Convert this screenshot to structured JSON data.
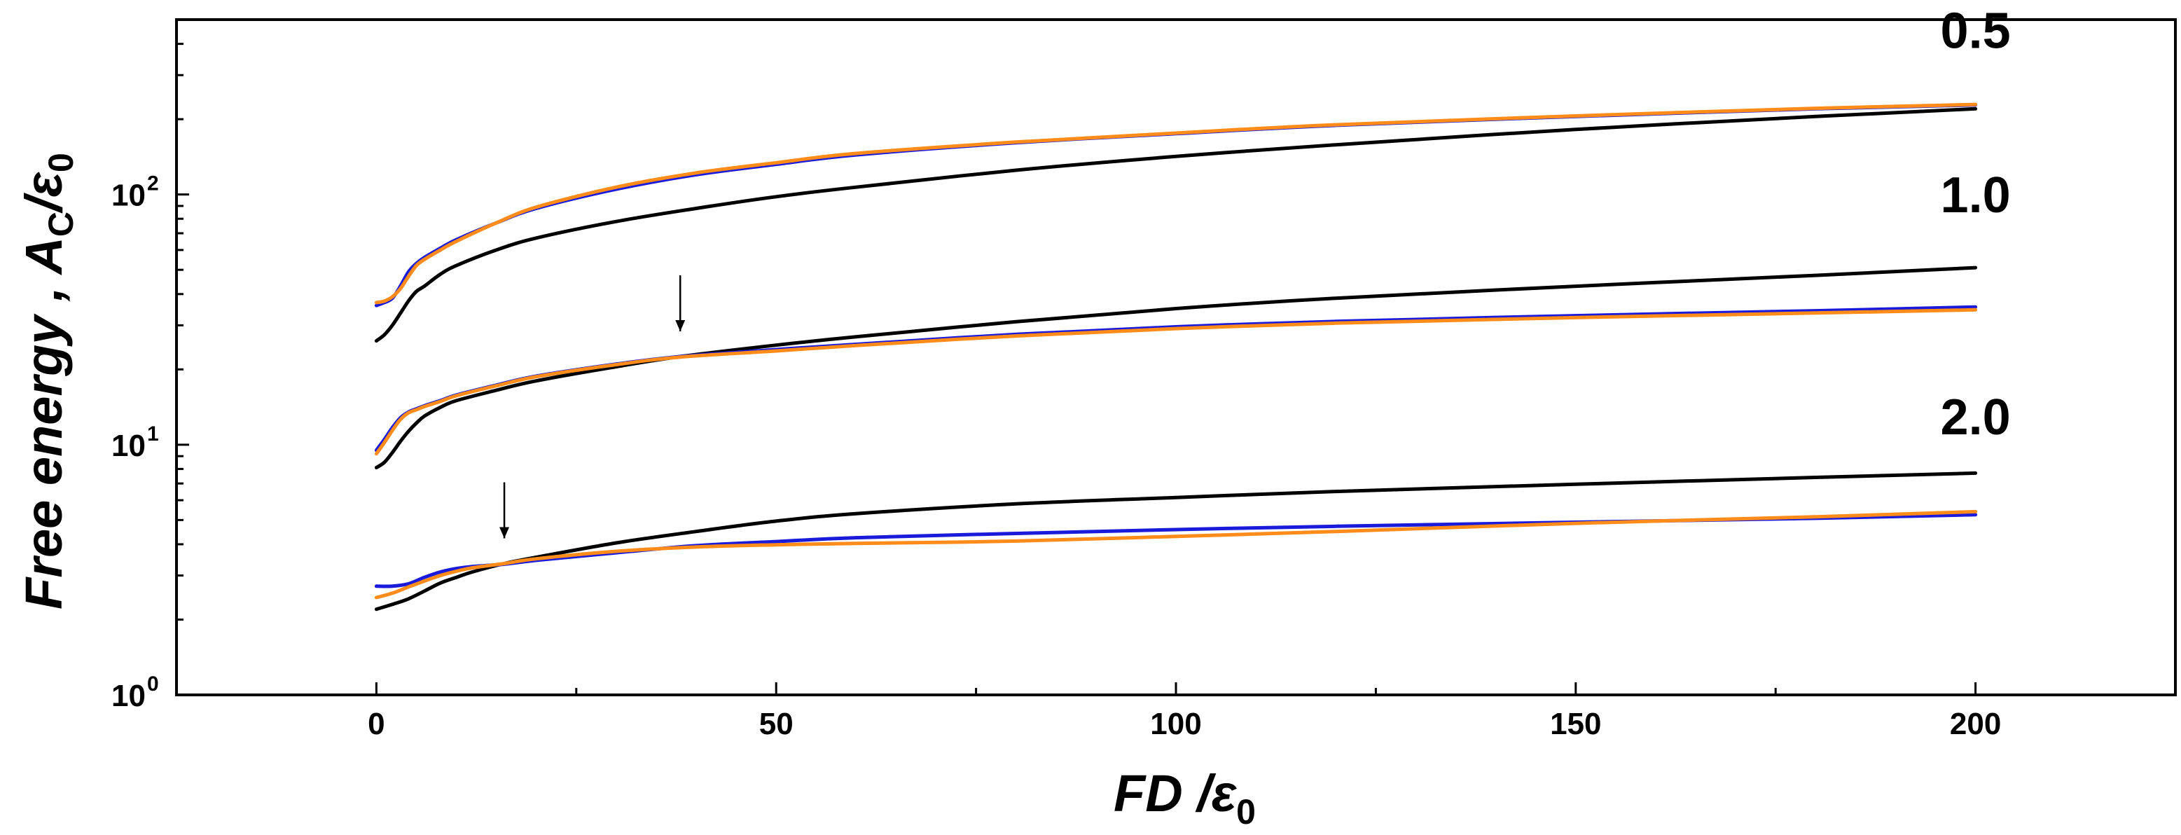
{
  "chart_data": {
    "type": "line",
    "title": "",
    "xlabel": "FD /ε0",
    "xlabel_parts": {
      "main": "FD /ε",
      "sub": "0"
    },
    "ylabel": "Free energy , AC/ε0",
    "ylabel_parts": {
      "main": "Free energy , A",
      "sub1": "C",
      "slash": "/ε",
      "sub2": "0"
    },
    "xlim": [
      -25,
      225
    ],
    "ylim": [
      1,
      500
    ],
    "yscale": "log",
    "x_ticks": [
      0,
      50,
      100,
      150,
      200
    ],
    "x_tick_labels": [
      "0",
      "50",
      "100",
      "150",
      "200"
    ],
    "y_ticks": [
      {
        "base": "10",
        "exp": "0",
        "value": 1
      },
      {
        "base": "10",
        "exp": "1",
        "value": 10
      },
      {
        "base": "10",
        "exp": "2",
        "value": 100
      }
    ],
    "colors": {
      "black": "#000000",
      "blue": "#1a1adb",
      "orange": "#ff8c1a"
    },
    "groups": [
      {
        "label": "0.5",
        "label_at": {
          "x": 200,
          "y": 385
        },
        "series": [
          {
            "name": "black",
            "color": "#000000",
            "x": [
              0,
              1,
              2,
              3,
              4,
              5,
              6,
              8,
              10,
              15,
              20,
              30,
              40,
              50,
              60,
              80,
              100,
              120,
              150,
              180,
              200
            ],
            "y": [
              26,
              27.5,
              30,
              33.5,
              37.5,
              41,
              43,
              48,
              52,
              60,
              67,
              78,
              88,
              98,
              107,
              125,
              142,
              158,
              182,
              205,
              220
            ]
          },
          {
            "name": "blue",
            "color": "#1a1adb",
            "x": [
              0,
              1,
              2,
              3,
              4,
              5,
              6,
              8,
              10,
              15,
              20,
              30,
              40,
              50,
              60,
              80,
              100,
              120,
              150,
              180,
              200
            ],
            "y": [
              36,
              37,
              38.5,
              43,
              49,
              53,
              56,
              61,
              66,
              77,
              88,
              105,
              120,
              132,
              144,
              161,
              175,
              189,
              205,
              220,
              228
            ]
          },
          {
            "name": "orange",
            "color": "#ff8c1a",
            "x": [
              0,
              1,
              2,
              3,
              4,
              5,
              6,
              8,
              10,
              15,
              20,
              30,
              40,
              50,
              60,
              80,
              100,
              120,
              150,
              180,
              200
            ],
            "y": [
              37,
              37.5,
              39,
              42,
              47,
              52,
              55,
              60,
              65,
              77,
              89,
              107,
              122,
              134,
              146,
              162,
              176,
              190,
              206,
              221,
              229
            ]
          }
        ]
      },
      {
        "label": "1.0",
        "label_at": {
          "x": 200,
          "y": 85
        },
        "arrow_x": 38,
        "series": [
          {
            "name": "black",
            "color": "#000000",
            "x": [
              0,
              1,
              2,
              3,
              4,
              5,
              6,
              8,
              10,
              15,
              20,
              30,
              38,
              50,
              60,
              80,
              100,
              120,
              150,
              180,
              200
            ],
            "y": [
              8.1,
              8.5,
              9.3,
              10.3,
              11.3,
              12.2,
              13,
              14.1,
              15,
              16.5,
              18,
              20.5,
              22.5,
              25,
              27,
              31,
              35,
              38.5,
              43,
              47.5,
              51
            ]
          },
          {
            "name": "blue",
            "color": "#1a1adb",
            "x": [
              0,
              1,
              2,
              3,
              4,
              5,
              6,
              8,
              10,
              15,
              20,
              30,
              38,
              50,
              60,
              80,
              100,
              120,
              150,
              180,
              200
            ],
            "y": [
              9.5,
              10.5,
              11.7,
              12.8,
              13.5,
              13.9,
              14.3,
              15,
              15.8,
              17.3,
              18.8,
              21,
              22.5,
              24,
              25.2,
              27.6,
              29.6,
              31.1,
              32.8,
              34.3,
              35.5
            ]
          },
          {
            "name": "orange",
            "color": "#ff8c1a",
            "x": [
              0,
              1,
              2,
              3,
              4,
              5,
              6,
              8,
              10,
              15,
              20,
              30,
              38,
              50,
              60,
              80,
              100,
              120,
              150,
              180,
              200
            ],
            "y": [
              9.2,
              10.2,
              11.4,
              12.6,
              13.4,
              13.8,
              14.2,
              14.9,
              15.7,
              17.2,
              18.7,
              20.9,
              22.4,
              23.7,
              24.9,
              27.2,
              29.1,
              30.6,
              32.2,
              33.6,
              34.6
            ]
          }
        ]
      },
      {
        "label": "2.0",
        "label_at": {
          "x": 200,
          "y": 11
        },
        "arrow_x": 16,
        "series": [
          {
            "name": "black",
            "color": "#000000",
            "x": [
              0,
              2,
              4,
              6,
              8,
              10,
              12,
              16,
              20,
              30,
              40,
              50,
              60,
              80,
              100,
              120,
              150,
              180,
              200
            ],
            "y": [
              2.2,
              2.3,
              2.42,
              2.6,
              2.8,
              2.95,
              3.1,
              3.35,
              3.55,
              4.05,
              4.5,
              4.95,
              5.3,
              5.8,
              6.15,
              6.5,
              6.95,
              7.4,
              7.7
            ]
          },
          {
            "name": "blue",
            "color": "#1a1adb",
            "x": [
              0,
              2,
              4,
              6,
              8,
              10,
              12,
              16,
              20,
              30,
              40,
              50,
              60,
              80,
              100,
              120,
              150,
              180,
              200
            ],
            "y": [
              2.72,
              2.72,
              2.78,
              2.95,
              3.1,
              3.2,
              3.26,
              3.33,
              3.45,
              3.7,
              3.95,
              4.1,
              4.25,
              4.42,
              4.58,
              4.72,
              4.9,
              5.08,
              5.25
            ]
          },
          {
            "name": "orange",
            "color": "#ff8c1a",
            "x": [
              0,
              2,
              4,
              6,
              8,
              10,
              12,
              16,
              20,
              30,
              40,
              50,
              60,
              80,
              100,
              120,
              150,
              180,
              200
            ],
            "y": [
              2.45,
              2.55,
              2.7,
              2.85,
              3.0,
              3.12,
              3.22,
              3.35,
              3.5,
              3.75,
              3.9,
              3.98,
              4.03,
              4.12,
              4.3,
              4.5,
              4.85,
              5.15,
              5.4
            ]
          }
        ]
      }
    ]
  }
}
